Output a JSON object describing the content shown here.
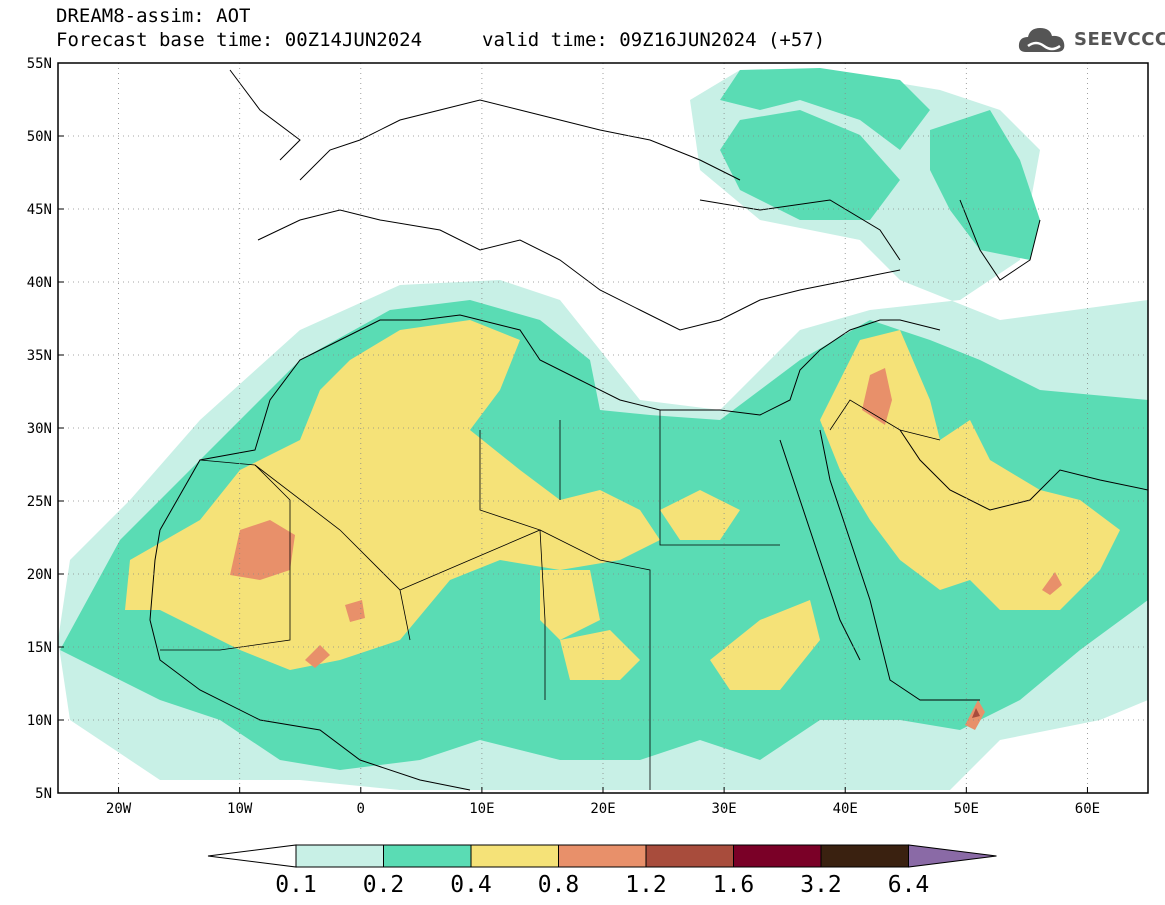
{
  "header": {
    "line1": "DREAM8-assim: AOT",
    "line2": "Forecast base time: 00Z14JUN2024",
    "line3": "valid time: 09Z16JUN2024 (+57)"
  },
  "logo": {
    "text": "SEEVCCC",
    "icon": "cloud-icon"
  },
  "map": {
    "lon_range": [
      -25,
      65
    ],
    "lat_range": [
      5,
      55
    ],
    "x_ticks": [
      "20W",
      "10W",
      "0",
      "10E",
      "20E",
      "30E",
      "40E",
      "50E",
      "60E"
    ],
    "y_ticks": [
      "55N",
      "50N",
      "45N",
      "40N",
      "35N",
      "30N",
      "25N",
      "20N",
      "15N",
      "10N",
      "5N"
    ],
    "grid": "dotted"
  },
  "colorbar": {
    "colors": [
      "#ffffff",
      "#c8f0e6",
      "#5adcb4",
      "#f5e278",
      "#e8906a",
      "#a84c3c",
      "#7a0027",
      "#3a2110",
      "#8a6aa6"
    ],
    "labels": [
      "0.1",
      "0.2",
      "0.4",
      "0.8",
      "1.2",
      "1.6",
      "3.2",
      "6.4"
    ]
  }
}
